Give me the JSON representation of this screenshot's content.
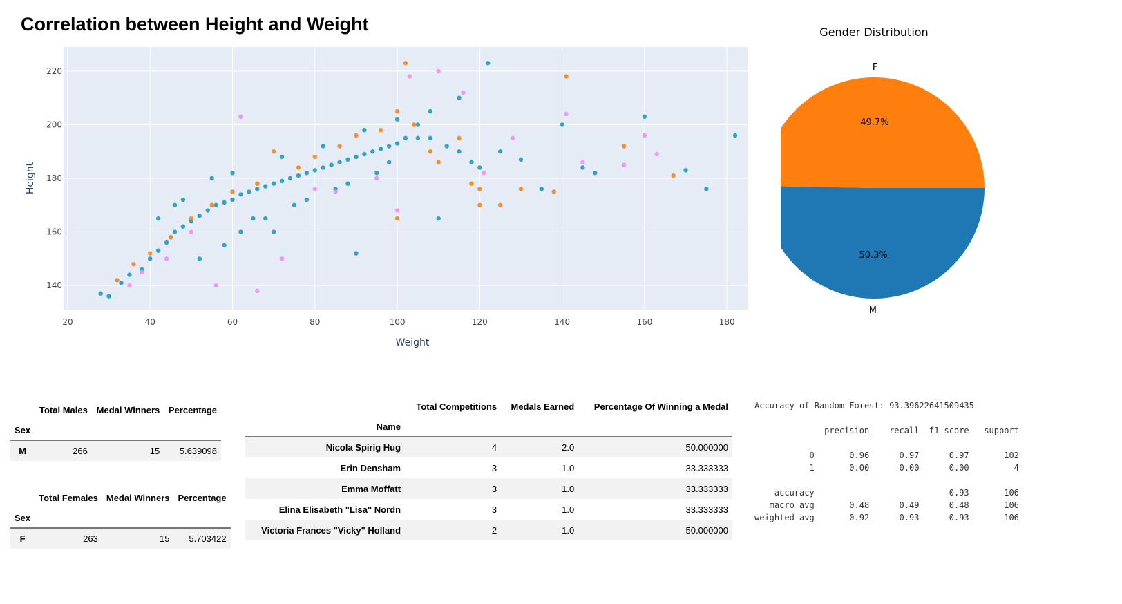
{
  "chart_data": [
    {
      "type": "scatter",
      "title": "Correlation between Height and Weight",
      "xlabel": "Weight",
      "ylabel": "Height",
      "xlim": [
        19,
        185
      ],
      "ylim": [
        131,
        229
      ],
      "xticks": [
        20,
        40,
        60,
        80,
        100,
        120,
        140,
        160,
        180
      ],
      "yticks": [
        140,
        160,
        180,
        200,
        220
      ],
      "grid": true,
      "series": [
        {
          "color": "#1f9bbd",
          "x": [
            28,
            30,
            33,
            35,
            38,
            40,
            42,
            44,
            45,
            46,
            48,
            50,
            52,
            54,
            56,
            58,
            60,
            62,
            64,
            66,
            68,
            70,
            72,
            74,
            76,
            78,
            80,
            82,
            84,
            86,
            88,
            90,
            92,
            94,
            96,
            98,
            100,
            102,
            105,
            108,
            112,
            115,
            118,
            120,
            122,
            125,
            130,
            135,
            140,
            145,
            148,
            160,
            170,
            175,
            182,
            90,
            110,
            55,
            48,
            62,
            75,
            85,
            95,
            65,
            70,
            52,
            58,
            68,
            78,
            88,
            98,
            105,
            42,
            46,
            60,
            72,
            82,
            92,
            100,
            108,
            115
          ],
          "y": [
            137,
            136,
            141,
            144,
            146,
            150,
            153,
            156,
            158,
            160,
            162,
            164,
            166,
            168,
            170,
            171,
            172,
            174,
            175,
            176,
            177,
            178,
            179,
            180,
            181,
            182,
            183,
            184,
            185,
            186,
            187,
            188,
            189,
            190,
            191,
            192,
            193,
            195,
            195,
            195,
            192,
            190,
            186,
            184,
            223,
            190,
            187,
            176,
            200,
            184,
            182,
            203,
            183,
            176,
            196,
            152,
            165,
            180,
            172,
            160,
            170,
            176,
            182,
            165,
            160,
            150,
            155,
            165,
            172,
            178,
            186,
            200,
            165,
            170,
            182,
            188,
            192,
            198,
            202,
            205,
            210
          ]
        },
        {
          "color": "#f58518",
          "x": [
            32,
            36,
            40,
            45,
            50,
            55,
            60,
            66,
            70,
            76,
            80,
            86,
            90,
            96,
            100,
            102,
            104,
            108,
            110,
            115,
            118,
            120,
            125,
            130,
            138,
            141,
            155,
            167,
            100,
            120
          ],
          "y": [
            142,
            148,
            152,
            158,
            165,
            170,
            175,
            178,
            190,
            184,
            188,
            192,
            196,
            198,
            205,
            223,
            200,
            190,
            186,
            195,
            178,
            170,
            170,
            176,
            175,
            218,
            192,
            181,
            165,
            176
          ],
          "note": "gender F"
        },
        {
          "color": "#ef8ef5",
          "x": [
            35,
            38,
            44,
            56,
            62,
            66,
            72,
            85,
            95,
            103,
            110,
            116,
            121,
            128,
            141,
            145,
            155,
            160,
            163,
            100,
            80,
            50
          ],
          "y": [
            140,
            145,
            150,
            140,
            203,
            138,
            150,
            175,
            180,
            218,
            220,
            212,
            182,
            195,
            204,
            186,
            185,
            196,
            189,
            168,
            176,
            160
          ]
        }
      ]
    },
    {
      "type": "pie",
      "title": "Gender Distribution",
      "labels": [
        "F",
        "M"
      ],
      "values": [
        49.7,
        50.3
      ],
      "value_labels": [
        "49.7%",
        "50.3%"
      ],
      "colors": [
        "#ff7f0e",
        "#1f77b4"
      ]
    },
    {
      "type": "table",
      "columns": [
        "Total Males",
        "Medal Winners",
        "Percentage"
      ],
      "index_name": "Sex",
      "rows": [
        [
          "M",
          "266",
          "15",
          "5.639098"
        ]
      ]
    },
    {
      "type": "table",
      "columns": [
        "Total Females",
        "Medal Winners",
        "Percentage"
      ],
      "index_name": "Sex",
      "rows": [
        [
          "F",
          "263",
          "15",
          "5.703422"
        ]
      ]
    },
    {
      "type": "table",
      "columns": [
        "Total Competitions",
        "Medals Earned",
        "Percentage Of Winning a Medal"
      ],
      "index_name": "Name",
      "rows": [
        [
          "Nicola Spirig Hug",
          "4",
          "2.0",
          "50.000000"
        ],
        [
          "Erin Densham",
          "3",
          "1.0",
          "33.333333"
        ],
        [
          "Emma Moffatt",
          "3",
          "1.0",
          "33.333333"
        ],
        [
          "Elina Elisabeth \"Lisa\" Nordn",
          "3",
          "1.0",
          "33.333333"
        ],
        [
          "Victoria Frances \"Vicky\" Holland",
          "2",
          "1.0",
          "50.000000"
        ]
      ]
    }
  ],
  "report": {
    "text": "Accuracy of Random Forest: 93.39622641509435\n\n              precision    recall  f1-score   support\n\n           0       0.96      0.97      0.97       102\n           1       0.00      0.00      0.00         4\n\n    accuracy                           0.93       106\n   macro avg       0.48      0.49      0.48       106\nweighted avg       0.92      0.93      0.93       106"
  }
}
